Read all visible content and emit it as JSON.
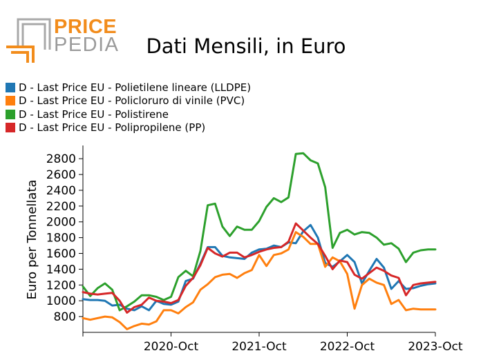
{
  "logo": {
    "text_top": "PRICE",
    "text_bottom": "PEDIA",
    "colors": {
      "orange": "#f28c1b",
      "gray": "#a0a0a0"
    }
  },
  "title": "Dati Mensili, in Euro",
  "chart_data": {
    "type": "line",
    "title": "Dati Mensili, in Euro",
    "xlabel": "",
    "ylabel": "Euro per Tonnellata",
    "x_ticks": [
      "2020-Oct",
      "2021-Oct",
      "2022-Oct",
      "2023-Oct"
    ],
    "y_ticks": [
      800,
      1000,
      1200,
      1400,
      1600,
      1800,
      2000,
      2200,
      2400,
      2600,
      2800
    ],
    "x_range": [
      "2019-Oct",
      "2023-Oct"
    ],
    "ylim": [
      600,
      2950
    ],
    "grid": false,
    "legend_position": "top-left",
    "x": [
      "2019-Oct",
      "2019-Nov",
      "2019-Dec",
      "2020-Jan",
      "2020-Feb",
      "2020-Mar",
      "2020-Apr",
      "2020-May",
      "2020-Jun",
      "2020-Jul",
      "2020-Aug",
      "2020-Sep",
      "2020-Oct",
      "2020-Nov",
      "2020-Dec",
      "2021-Jan",
      "2021-Feb",
      "2021-Mar",
      "2021-Apr",
      "2021-May",
      "2021-Jun",
      "2021-Jul",
      "2021-Aug",
      "2021-Sep",
      "2021-Oct",
      "2021-Nov",
      "2021-Dec",
      "2022-Jan",
      "2022-Feb",
      "2022-Mar",
      "2022-Apr",
      "2022-May",
      "2022-Jun",
      "2022-Jul",
      "2022-Aug",
      "2022-Sep",
      "2022-Oct",
      "2022-Nov",
      "2022-Dec",
      "2023-Jan",
      "2023-Feb",
      "2023-Mar",
      "2023-Apr",
      "2023-May",
      "2023-Jun",
      "2023-Jul",
      "2023-Aug",
      "2023-Sep",
      "2023-Oct"
    ],
    "series": [
      {
        "name": "D - Last Price EU - Polietilene lineare (LLDPE)",
        "color": "#1f77b4",
        "values": [
          1020,
          1010,
          1010,
          1000,
          940,
          950,
          900,
          880,
          930,
          880,
          1000,
          960,
          950,
          990,
          1250,
          1280,
          1470,
          1680,
          1680,
          1570,
          1550,
          1540,
          1530,
          1610,
          1650,
          1660,
          1700,
          1680,
          1740,
          1730,
          1880,
          1960,
          1800,
          1480,
          1430,
          1500,
          1580,
          1490,
          1220,
          1380,
          1530,
          1420,
          1150,
          1250,
          1150,
          1160,
          1190,
          1210,
          1220
        ]
      },
      {
        "name": "D - Last Price EU - Policloruro di vinile (PVC)",
        "color": "#ff7f0e",
        "values": [
          780,
          760,
          780,
          800,
          790,
          730,
          640,
          680,
          710,
          700,
          740,
          880,
          880,
          840,
          920,
          980,
          1140,
          1210,
          1300,
          1330,
          1340,
          1290,
          1350,
          1390,
          1580,
          1440,
          1580,
          1600,
          1650,
          1870,
          1810,
          1720,
          1720,
          1430,
          1550,
          1500,
          1340,
          900,
          1200,
          1280,
          1230,
          1200,
          960,
          1010,
          880,
          900,
          890,
          890,
          890
        ]
      },
      {
        "name": "D - Last Price EU - Polistirene",
        "color": "#2ca02c",
        "values": [
          1180,
          1060,
          1160,
          1220,
          1140,
          880,
          930,
          990,
          1070,
          1070,
          1050,
          1010,
          1050,
          1300,
          1380,
          1310,
          1630,
          2210,
          2230,
          1940,
          1820,
          1940,
          1900,
          1900,
          2010,
          2190,
          2300,
          2250,
          2310,
          2860,
          2870,
          2780,
          2740,
          2440,
          1670,
          1860,
          1900,
          1840,
          1870,
          1860,
          1800,
          1710,
          1730,
          1660,
          1490,
          1610,
          1640,
          1650,
          1650
        ]
      },
      {
        "name": "D - Last Price EU - Polipropilene (PP)",
        "color": "#d62728",
        "values": [
          1110,
          1090,
          1080,
          1090,
          1100,
          1000,
          850,
          920,
          950,
          1040,
          1000,
          990,
          970,
          1010,
          1190,
          1290,
          1450,
          1670,
          1600,
          1560,
          1610,
          1610,
          1550,
          1580,
          1620,
          1650,
          1670,
          1680,
          1750,
          1980,
          1890,
          1800,
          1720,
          1570,
          1400,
          1510,
          1490,
          1330,
          1280,
          1350,
          1420,
          1380,
          1320,
          1290,
          1070,
          1200,
          1220,
          1230,
          1240
        ]
      }
    ]
  }
}
